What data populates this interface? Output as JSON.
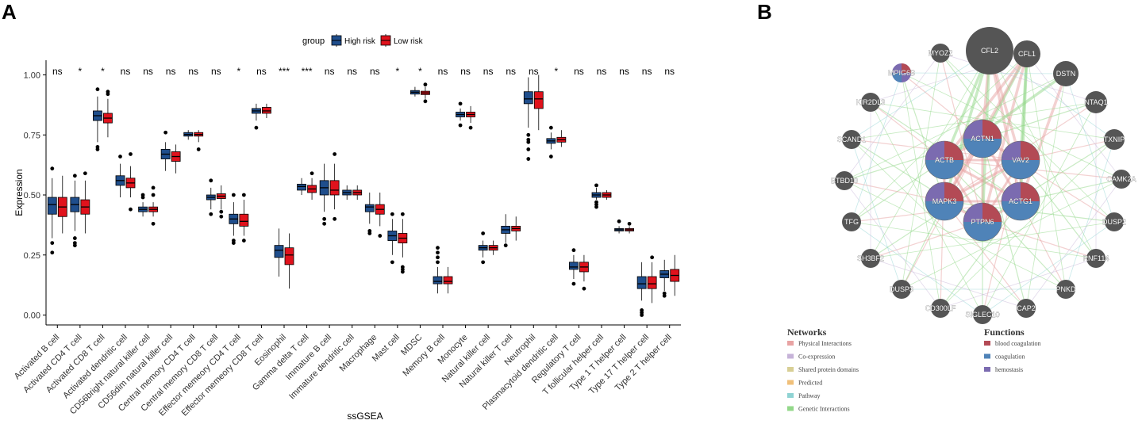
{
  "panels": {
    "a_label": "A",
    "b_label": "B"
  },
  "chart_data": {
    "type": "boxplot",
    "title": "",
    "xlabel": "ssGSEA",
    "ylabel": "Expression",
    "ylim": [
      -0.02,
      1.07
    ],
    "y_ticks": [
      "0.00",
      "0.25",
      "0.50",
      "0.75",
      "1.00"
    ],
    "y_tick_values": [
      0,
      0.25,
      0.5,
      0.75,
      1.0
    ],
    "legend": {
      "title": "group",
      "position": "top",
      "items": [
        {
          "label": "High risk",
          "color": "#1f4e8c"
        },
        {
          "label": "Low risk",
          "color": "#e0121c"
        }
      ]
    },
    "categories": [
      {
        "name": "Activated B cell",
        "sig": "ns",
        "high": {
          "min": 0.32,
          "q1": 0.42,
          "median": 0.46,
          "q3": 0.49,
          "max": 0.57,
          "outliers": [
            0.26,
            0.3,
            0.61
          ]
        },
        "low": {
          "min": 0.34,
          "q1": 0.41,
          "median": 0.45,
          "q3": 0.49,
          "max": 0.58,
          "outliers": []
        }
      },
      {
        "name": "Activated CD4 T cell",
        "sig": "*",
        "high": {
          "min": 0.35,
          "q1": 0.43,
          "median": 0.46,
          "q3": 0.49,
          "max": 0.56,
          "outliers": [
            0.29,
            0.3,
            0.32,
            0.58
          ]
        },
        "low": {
          "min": 0.34,
          "q1": 0.42,
          "median": 0.45,
          "q3": 0.48,
          "max": 0.56,
          "outliers": [
            0.59
          ]
        }
      },
      {
        "name": "Activated CD8 T cell",
        "sig": "*",
        "high": {
          "min": 0.72,
          "q1": 0.81,
          "median": 0.83,
          "q3": 0.85,
          "max": 0.91,
          "outliers": [
            0.69,
            0.7,
            0.94
          ]
        },
        "low": {
          "min": 0.74,
          "q1": 0.8,
          "median": 0.82,
          "q3": 0.84,
          "max": 0.9,
          "outliers": [
            0.92,
            0.93
          ]
        }
      },
      {
        "name": "Activated dendritic cell",
        "sig": "ns",
        "high": {
          "min": 0.49,
          "q1": 0.54,
          "median": 0.56,
          "q3": 0.58,
          "max": 0.63,
          "outliers": [
            0.66
          ]
        },
        "low": {
          "min": 0.49,
          "q1": 0.53,
          "median": 0.55,
          "q3": 0.57,
          "max": 0.62,
          "outliers": [
            0.44,
            0.67
          ]
        }
      },
      {
        "name": "CD56bright natural killer cell",
        "sig": "ns",
        "high": {
          "min": 0.41,
          "q1": 0.43,
          "median": 0.44,
          "q3": 0.45,
          "max": 0.47,
          "outliers": [
            0.49,
            0.5
          ]
        },
        "low": {
          "min": 0.41,
          "q1": 0.43,
          "median": 0.44,
          "q3": 0.45,
          "max": 0.47,
          "outliers": [
            0.38,
            0.5,
            0.53
          ]
        }
      },
      {
        "name": "CD56dim natural killer cell",
        "sig": "ns",
        "high": {
          "min": 0.6,
          "q1": 0.65,
          "median": 0.67,
          "q3": 0.69,
          "max": 0.72,
          "outliers": [
            0.76
          ]
        },
        "low": {
          "min": 0.59,
          "q1": 0.64,
          "median": 0.66,
          "q3": 0.68,
          "max": 0.71,
          "outliers": []
        }
      },
      {
        "name": "Central memory CD4 T cell",
        "sig": "ns",
        "high": {
          "min": 0.73,
          "q1": 0.745,
          "median": 0.752,
          "q3": 0.76,
          "max": 0.77,
          "outliers": []
        },
        "low": {
          "min": 0.72,
          "q1": 0.745,
          "median": 0.752,
          "q3": 0.76,
          "max": 0.77,
          "outliers": [
            0.69
          ]
        }
      },
      {
        "name": "Central memory CD8 T cell",
        "sig": "ns",
        "high": {
          "min": 0.44,
          "q1": 0.48,
          "median": 0.49,
          "q3": 0.5,
          "max": 0.53,
          "outliers": [
            0.42,
            0.56
          ]
        },
        "low": {
          "min": 0.44,
          "q1": 0.485,
          "median": 0.495,
          "q3": 0.505,
          "max": 0.54,
          "outliers": [
            0.41,
            0.43
          ]
        }
      },
      {
        "name": "Effector memeory CD4 T cell",
        "sig": "*",
        "high": {
          "min": 0.33,
          "q1": 0.38,
          "median": 0.4,
          "q3": 0.42,
          "max": 0.47,
          "outliers": [
            0.3,
            0.31,
            0.5
          ]
        },
        "low": {
          "min": 0.33,
          "q1": 0.37,
          "median": 0.39,
          "q3": 0.42,
          "max": 0.48,
          "outliers": [
            0.31,
            0.5
          ]
        }
      },
      {
        "name": "Effector memeory CD8 T cell",
        "sig": "ns",
        "high": {
          "min": 0.81,
          "q1": 0.84,
          "median": 0.85,
          "q3": 0.86,
          "max": 0.88,
          "outliers": [
            0.78
          ]
        },
        "low": {
          "min": 0.82,
          "q1": 0.84,
          "median": 0.85,
          "q3": 0.865,
          "max": 0.88,
          "outliers": []
        }
      },
      {
        "name": "Eosinophil",
        "sig": "***",
        "high": {
          "min": 0.16,
          "q1": 0.24,
          "median": 0.27,
          "q3": 0.29,
          "max": 0.36,
          "outliers": []
        },
        "low": {
          "min": 0.11,
          "q1": 0.21,
          "median": 0.25,
          "q3": 0.28,
          "max": 0.34,
          "outliers": []
        }
      },
      {
        "name": "Gamma delta T cell",
        "sig": "***",
        "high": {
          "min": 0.5,
          "q1": 0.52,
          "median": 0.535,
          "q3": 0.545,
          "max": 0.57,
          "outliers": []
        },
        "low": {
          "min": 0.48,
          "q1": 0.51,
          "median": 0.525,
          "q3": 0.54,
          "max": 0.57,
          "outliers": [
            0.59
          ]
        }
      },
      {
        "name": "Immature  B cell",
        "sig": "ns",
        "high": {
          "min": 0.43,
          "q1": 0.5,
          "median": 0.53,
          "q3": 0.56,
          "max": 0.63,
          "outliers": [
            0.38,
            0.4
          ]
        },
        "low": {
          "min": 0.44,
          "q1": 0.5,
          "median": 0.52,
          "q3": 0.56,
          "max": 0.63,
          "outliers": [
            0.4,
            0.67
          ]
        }
      },
      {
        "name": "Immature dendritic cell",
        "sig": "ns",
        "high": {
          "min": 0.48,
          "q1": 0.5,
          "median": 0.51,
          "q3": 0.52,
          "max": 0.54,
          "outliers": []
        },
        "low": {
          "min": 0.48,
          "q1": 0.5,
          "median": 0.51,
          "q3": 0.52,
          "max": 0.54,
          "outliers": []
        }
      },
      {
        "name": "Macrophage",
        "sig": "ns",
        "high": {
          "min": 0.38,
          "q1": 0.43,
          "median": 0.45,
          "q3": 0.46,
          "max": 0.51,
          "outliers": [
            0.34,
            0.35
          ]
        },
        "low": {
          "min": 0.37,
          "q1": 0.42,
          "median": 0.44,
          "q3": 0.46,
          "max": 0.51,
          "outliers": [
            0.33
          ]
        }
      },
      {
        "name": "Mast cell",
        "sig": "*",
        "high": {
          "min": 0.25,
          "q1": 0.31,
          "median": 0.33,
          "q3": 0.35,
          "max": 0.4,
          "outliers": [
            0.22,
            0.42
          ]
        },
        "low": {
          "min": 0.24,
          "q1": 0.3,
          "median": 0.32,
          "q3": 0.34,
          "max": 0.4,
          "outliers": [
            0.18,
            0.19,
            0.2,
            0.42
          ]
        }
      },
      {
        "name": "MDSC",
        "sig": "*",
        "high": {
          "min": 0.91,
          "q1": 0.92,
          "median": 0.928,
          "q3": 0.935,
          "max": 0.95,
          "outliers": []
        },
        "low": {
          "min": 0.9,
          "q1": 0.918,
          "median": 0.925,
          "q3": 0.932,
          "max": 0.95,
          "outliers": [
            0.89,
            0.96
          ]
        }
      },
      {
        "name": "Memory B cell",
        "sig": "ns",
        "high": {
          "min": 0.09,
          "q1": 0.13,
          "median": 0.14,
          "q3": 0.16,
          "max": 0.2,
          "outliers": [
            0.22,
            0.24,
            0.26,
            0.28
          ]
        },
        "low": {
          "min": 0.09,
          "q1": 0.13,
          "median": 0.14,
          "q3": 0.16,
          "max": 0.2,
          "outliers": []
        }
      },
      {
        "name": "Monocyte",
        "sig": "ns",
        "high": {
          "min": 0.81,
          "q1": 0.825,
          "median": 0.835,
          "q3": 0.845,
          "max": 0.86,
          "outliers": [
            0.79,
            0.88
          ]
        },
        "low": {
          "min": 0.8,
          "q1": 0.825,
          "median": 0.835,
          "q3": 0.845,
          "max": 0.87,
          "outliers": [
            0.78
          ]
        }
      },
      {
        "name": "Natural killer cell",
        "sig": "ns",
        "high": {
          "min": 0.24,
          "q1": 0.27,
          "median": 0.28,
          "q3": 0.29,
          "max": 0.31,
          "outliers": [
            0.22,
            0.34
          ]
        },
        "low": {
          "min": 0.25,
          "q1": 0.27,
          "median": 0.28,
          "q3": 0.29,
          "max": 0.31,
          "outliers": []
        }
      },
      {
        "name": "Natural killer T cell",
        "sig": "ns",
        "high": {
          "min": 0.3,
          "q1": 0.34,
          "median": 0.355,
          "q3": 0.37,
          "max": 0.42,
          "outliers": [
            0.29
          ]
        },
        "low": {
          "min": 0.31,
          "q1": 0.35,
          "median": 0.36,
          "q3": 0.37,
          "max": 0.41,
          "outliers": []
        }
      },
      {
        "name": "Neutrophil",
        "sig": "ns",
        "high": {
          "min": 0.78,
          "q1": 0.88,
          "median": 0.9,
          "q3": 0.93,
          "max": 0.99,
          "outliers": [
            0.65,
            0.69,
            0.72,
            0.73,
            0.75
          ]
        },
        "low": {
          "min": 0.77,
          "q1": 0.86,
          "median": 0.9,
          "q3": 0.93,
          "max": 1.0,
          "outliers": []
        }
      },
      {
        "name": "Plasmacytoid dendritic cell",
        "sig": "*",
        "high": {
          "min": 0.69,
          "q1": 0.715,
          "median": 0.725,
          "q3": 0.735,
          "max": 0.76,
          "outliers": [
            0.66,
            0.78
          ]
        },
        "low": {
          "min": 0.7,
          "q1": 0.72,
          "median": 0.73,
          "q3": 0.74,
          "max": 0.77,
          "outliers": []
        }
      },
      {
        "name": "Regulatory T cell",
        "sig": "ns",
        "high": {
          "min": 0.15,
          "q1": 0.19,
          "median": 0.2,
          "q3": 0.22,
          "max": 0.25,
          "outliers": [
            0.13,
            0.27
          ]
        },
        "low": {
          "min": 0.14,
          "q1": 0.18,
          "median": 0.2,
          "q3": 0.22,
          "max": 0.25,
          "outliers": [
            0.11
          ]
        }
      },
      {
        "name": "T follicular helper cell",
        "sig": "ns",
        "high": {
          "min": 0.48,
          "q1": 0.49,
          "median": 0.5,
          "q3": 0.51,
          "max": 0.53,
          "outliers": [
            0.45,
            0.46,
            0.47,
            0.54
          ]
        },
        "low": {
          "min": 0.48,
          "q1": 0.49,
          "median": 0.5,
          "q3": 0.51,
          "max": 0.52,
          "outliers": []
        }
      },
      {
        "name": "Type 1 T helper cell",
        "sig": "ns",
        "high": {
          "min": 0.34,
          "q1": 0.35,
          "median": 0.355,
          "q3": 0.36,
          "max": 0.37,
          "outliers": [
            0.39
          ]
        },
        "low": {
          "min": 0.34,
          "q1": 0.35,
          "median": 0.355,
          "q3": 0.36,
          "max": 0.37,
          "outliers": [
            0.38
          ]
        }
      },
      {
        "name": "Type 17 T helper cell",
        "sig": "ns",
        "high": {
          "min": 0.06,
          "q1": 0.11,
          "median": 0.13,
          "q3": 0.16,
          "max": 0.22,
          "outliers": [
            0.0,
            0.01,
            0.02
          ]
        },
        "low": {
          "min": 0.05,
          "q1": 0.11,
          "median": 0.13,
          "q3": 0.16,
          "max": 0.22,
          "outliers": [
            0.24
          ]
        }
      },
      {
        "name": "Type 2 T helper cell",
        "sig": "ns",
        "high": {
          "min": 0.1,
          "q1": 0.155,
          "median": 0.17,
          "q3": 0.185,
          "max": 0.23,
          "outliers": [
            0.08,
            0.09
          ]
        },
        "low": {
          "min": 0.08,
          "q1": 0.14,
          "median": 0.165,
          "q3": 0.19,
          "max": 0.25,
          "outliers": []
        }
      }
    ]
  },
  "network": {
    "hub_nodes": [
      "ACTN1",
      "ACTB",
      "VAV2",
      "MAPK3",
      "ACTG1",
      "PTPN6"
    ],
    "outer_nodes": [
      "CFL2",
      "CFL1",
      "DSTN",
      "NTAQ1",
      "TXNIP",
      "CAMK2A",
      "DUSP2",
      "RNF114",
      "PNKD",
      "CAP2",
      "SIGLEC10",
      "CD300LF",
      "DUSP3",
      "SH3BF2",
      "TFG",
      "BTBD10",
      "SCAND1",
      "KIR2DL3",
      "MPIG6B",
      "MYOZ2"
    ],
    "legend": {
      "networks_title": "Networks",
      "networks": [
        {
          "label": "Physical Interactions",
          "color": "#e8a3a3"
        },
        {
          "label": "Co-expression",
          "color": "#c6b3d8"
        },
        {
          "label": "Shared protein domains",
          "color": "#d8cf95"
        },
        {
          "label": "Predicted",
          "color": "#f0c07a"
        },
        {
          "label": "Pathway",
          "color": "#8fd3d3"
        },
        {
          "label": "Genetic Interactions",
          "color": "#93d88a"
        }
      ],
      "functions_title": "Functions",
      "functions": [
        {
          "label": "blood coagulation",
          "color": "#b34a55"
        },
        {
          "label": "coagulation",
          "color": "#4f83b8"
        },
        {
          "label": "hemostasis",
          "color": "#7b6bb0"
        }
      ]
    }
  }
}
